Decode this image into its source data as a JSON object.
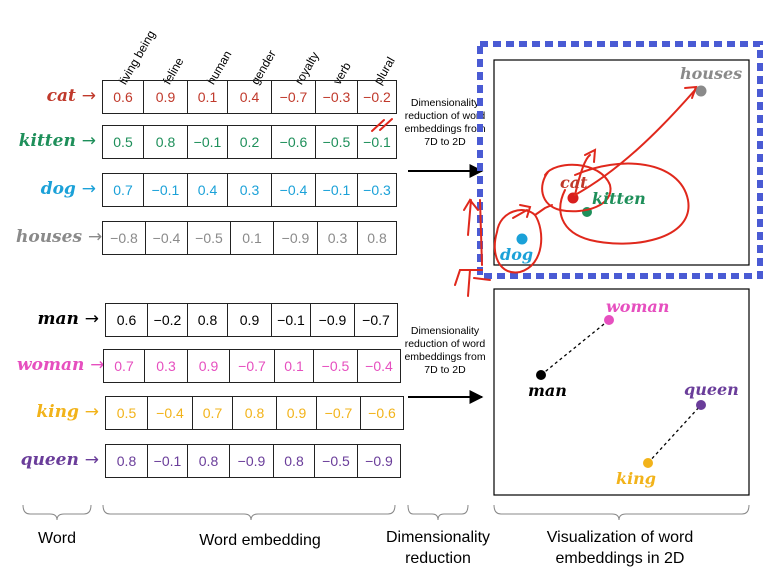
{
  "features": [
    "living being",
    "feline",
    "human",
    "gender",
    "royalty",
    "verb",
    "plural"
  ],
  "colors": {
    "cat": "#c0392b",
    "kitten": "#1e8f5a",
    "dog": "#1ba1d8",
    "houses": "#8a8a8a",
    "man": "#000000",
    "woman": "#e64fbf",
    "king": "#f2b31a",
    "queen": "#6a3d9a"
  },
  "group1": [
    {
      "word": "cat",
      "values": [
        "0.6",
        "0.9",
        "0.1",
        "0.4",
        "−0.7",
        "−0.3",
        "−0.2"
      ]
    },
    {
      "word": "kitten",
      "values": [
        "0.5",
        "0.8",
        "−0.1",
        "0.2",
        "−0.6",
        "−0.5",
        "−0.1"
      ]
    },
    {
      "word": "dog",
      "values": [
        "0.7",
        "−0.1",
        "0.4",
        "0.3",
        "−0.4",
        "−0.1",
        "−0.3"
      ]
    },
    {
      "word": "houses",
      "values": [
        "−0.8",
        "−0.4",
        "−0.5",
        "0.1",
        "−0.9",
        "0.3",
        "0.8"
      ]
    }
  ],
  "group2": [
    {
      "word": "man",
      "values": [
        "0.6",
        "−0.2",
        "0.8",
        "0.9",
        "−0.1",
        "−0.9",
        "−0.7"
      ]
    },
    {
      "word": "woman",
      "values": [
        "0.7",
        "0.3",
        "0.9",
        "−0.7",
        "0.1",
        "−0.5",
        "−0.4"
      ]
    },
    {
      "word": "king",
      "values": [
        "0.5",
        "−0.4",
        "0.7",
        "0.8",
        "0.9",
        "−0.7",
        "−0.6"
      ]
    },
    {
      "word": "queen",
      "values": [
        "0.8",
        "−0.1",
        "0.8",
        "−0.9",
        "0.8",
        "−0.5",
        "−0.9"
      ]
    }
  ],
  "arrow_symbol": "→",
  "dim_text": "Dimensionality reduction of word embeddings from 7D to 2D",
  "plot1_labels": {
    "houses": "houses",
    "cat": "cat",
    "kitten": "kitten",
    "dog": "dog"
  },
  "plot2_labels": {
    "woman": "woman",
    "man": "man",
    "queen": "queen",
    "king": "king"
  },
  "bottom": {
    "word": "Word",
    "embedding": "Word embedding",
    "dimred": "Dimensionality reduction",
    "visual": "Visualization of word embeddings  in 2D"
  }
}
